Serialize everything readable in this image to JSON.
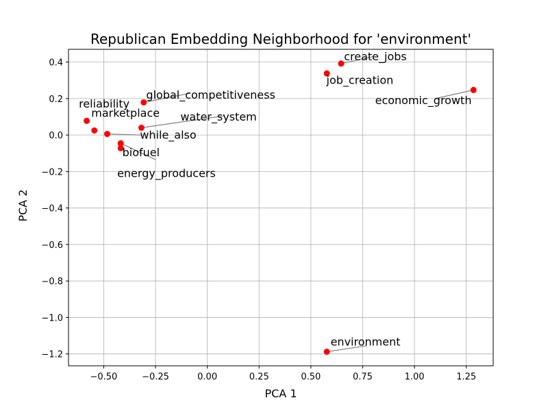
{
  "chart_data": {
    "type": "scatter",
    "title": "Republican Embedding Neighborhood for 'environment'",
    "xlabel": "PCA 1",
    "ylabel": "PCA 2",
    "xlim": [
      -0.67,
      1.38
    ],
    "ylim": [
      -1.265,
      0.47
    ],
    "xticks": [
      -0.5,
      -0.25,
      0.0,
      0.25,
      0.5,
      0.75,
      1.0,
      1.25
    ],
    "xtick_labels": [
      "−0.50",
      "−0.25",
      "0.00",
      "0.25",
      "0.50",
      "0.75",
      "1.00",
      "1.25"
    ],
    "yticks": [
      0.4,
      0.2,
      0.0,
      -0.2,
      -0.4,
      -0.6,
      -0.8,
      -1.0,
      -1.2
    ],
    "ytick_labels": [
      "0.4",
      "0.2",
      "0.0",
      "−0.2",
      "−0.4",
      "−0.6",
      "−0.8",
      "−1.0",
      "−1.2"
    ],
    "grid": true,
    "point_color": "#ff0000",
    "leader_color": "#808080",
    "points": [
      {
        "x": 0.646,
        "y": 0.392
      },
      {
        "x": 0.577,
        "y": 0.338
      },
      {
        "x": 1.285,
        "y": 0.247
      },
      {
        "x": -0.307,
        "y": 0.179
      },
      {
        "x": -0.582,
        "y": 0.078
      },
      {
        "x": -0.545,
        "y": 0.025
      },
      {
        "x": -0.483,
        "y": 0.006
      },
      {
        "x": -0.318,
        "y": 0.04
      },
      {
        "x": -0.418,
        "y": -0.045
      },
      {
        "x": -0.418,
        "y": -0.072
      },
      {
        "x": 0.577,
        "y": -1.188
      }
    ],
    "labels": [
      {
        "text": "create_jobs",
        "x": 0.66,
        "y": 0.41,
        "px": 0.646,
        "py": 0.392
      },
      {
        "text": "job_creation",
        "x": 0.575,
        "y": 0.28,
        "px": 0.577,
        "py": 0.338
      },
      {
        "text": "economic_growth",
        "x": 0.81,
        "y": 0.17,
        "px": 1.285,
        "py": 0.247
      },
      {
        "text": "global_competitiveness",
        "x": -0.295,
        "y": 0.2,
        "px": -0.307,
        "py": 0.179
      },
      {
        "text": "reliability",
        "x": -0.62,
        "y": 0.15,
        "px": -0.307,
        "py": 0.179
      },
      {
        "text": "marketplace",
        "x": -0.56,
        "y": 0.1,
        "px": -0.582,
        "py": 0.078
      },
      {
        "text": "water_system",
        "x": -0.13,
        "y": 0.08,
        "px": -0.318,
        "py": 0.04
      },
      {
        "text": "while_also",
        "x": -0.325,
        "y": -0.02,
        "px": -0.483,
        "py": 0.006
      },
      {
        "text": "biofuel",
        "x": -0.41,
        "y": -0.115,
        "px": -0.418,
        "py": -0.072
      },
      {
        "text": "energy_producers",
        "x": -0.435,
        "y": -0.23,
        "px": -0.418,
        "py": -0.045
      },
      {
        "text": "environment",
        "x": 0.595,
        "y": -1.155,
        "px": 0.577,
        "py": -1.188
      }
    ],
    "leaders": [
      {
        "x1": 0.646,
        "y1": 0.392,
        "x2": 0.8,
        "y2": 0.43
      },
      {
        "x1": 1.285,
        "y1": 0.247,
        "x2": 1.1,
        "y2": 0.2
      },
      {
        "x1": -0.307,
        "y1": 0.179,
        "x2": -0.08,
        "y2": 0.23
      },
      {
        "x1": -0.318,
        "y1": 0.04,
        "x2": 0.08,
        "y2": 0.105
      },
      {
        "x1": -0.483,
        "y1": 0.006,
        "x2": -0.32,
        "y2": 0.0
      },
      {
        "x1": -0.418,
        "y1": -0.045,
        "x2": -0.25,
        "y2": -0.135
      },
      {
        "x1": 0.577,
        "y1": -1.188,
        "x2": 0.77,
        "y2": -1.155
      }
    ]
  }
}
